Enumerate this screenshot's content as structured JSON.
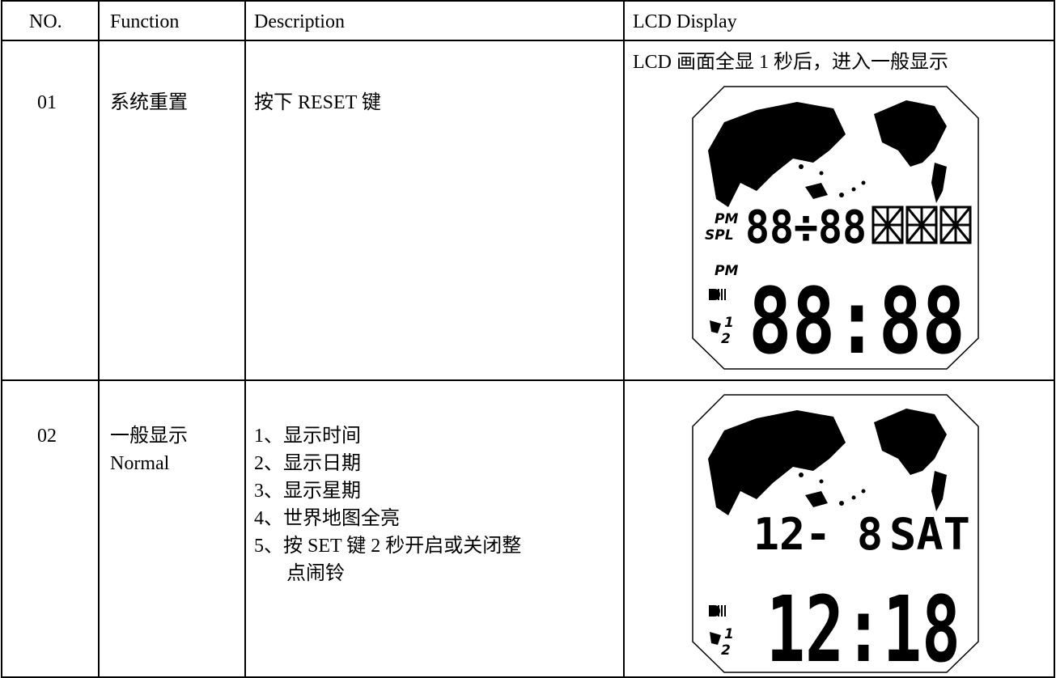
{
  "table": {
    "header": [
      "NO.",
      "Function",
      "Description",
      "LCD Display"
    ],
    "rows": [
      {
        "no": "01",
        "function": [
          "系统重置"
        ],
        "description": [
          "按下 RESET 键"
        ],
        "lcd_caption": "LCD 画面全显 1 秒后，进入一般显示",
        "lcd": {
          "pm_top": "PM",
          "spl": "SPL",
          "top_time": "88÷88",
          "pm_bottom": "PM",
          "main_time": "88:88",
          "alarm_1": "1",
          "alarm_2": "2"
        }
      },
      {
        "no": "02",
        "function": [
          "一般显示",
          "Normal"
        ],
        "description": [
          "1、显示时间",
          "2、显示日期",
          "3、显示星期",
          "4、世界地图全亮",
          "5、按 SET 键 2 秒开启或关闭整",
          "点闹铃"
        ],
        "lcd": {
          "date": "12- 8",
          "weekday": "SAT",
          "main_time": "12:18",
          "alarm_1": "1",
          "alarm_2": "2"
        }
      }
    ]
  }
}
